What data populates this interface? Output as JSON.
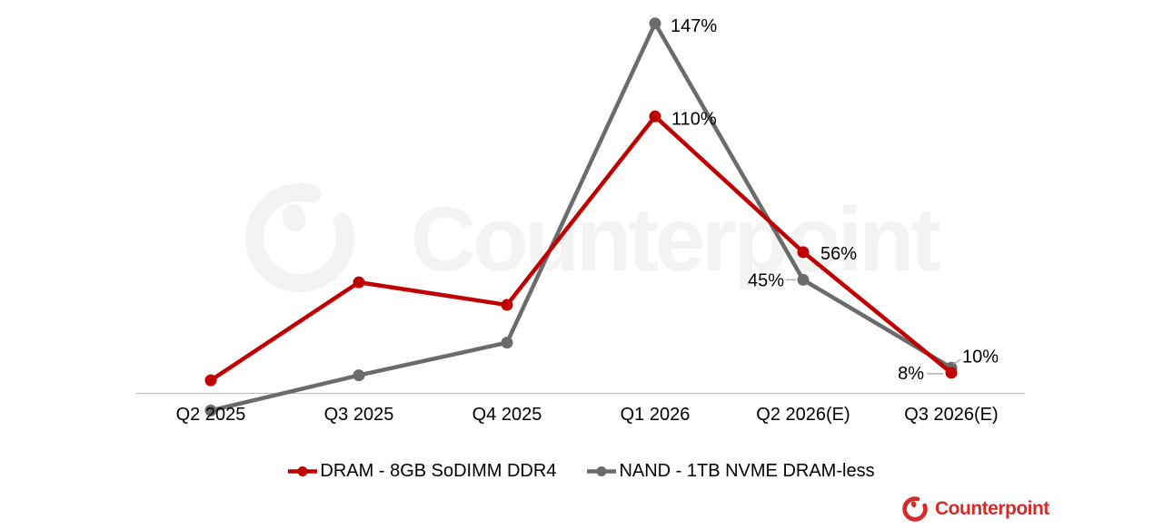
{
  "watermark": {
    "text": "Counterpoint"
  },
  "footer_logo": {
    "text": "Counterpoint",
    "color": "#D42B2B"
  },
  "chart_data": {
    "type": "line",
    "title": "",
    "xlabel": "",
    "ylabel": "",
    "unit": "%",
    "categories": [
      "Q2 2025",
      "Q3 2025",
      "Q4 2025",
      "Q1 2026",
      "Q2 2026(E)",
      "Q3 2026(E)"
    ],
    "ylim": [
      -10,
      160
    ],
    "grid": false,
    "baseline_at_zero": true,
    "legend_position": "bottom",
    "axis_color": "#BFBFBF",
    "label_color": "#000000",
    "leader_color": "#A6A6A6",
    "series": [
      {
        "name": "DRAM - 8GB SoDIMM DDR4",
        "color": "#C00000",
        "values": [
          5,
          44,
          35,
          110,
          56,
          8
        ],
        "point_labels": [
          {
            "index": 3,
            "text": "110%",
            "dx": 18,
            "dy": 9,
            "anchor": "start"
          },
          {
            "index": 4,
            "text": "56%",
            "dx": 19,
            "dy": 8,
            "anchor": "start"
          },
          {
            "index": 5,
            "text": "8%",
            "dx": -30,
            "dy": 7,
            "anchor": "end",
            "leader": [
              [
                -27,
                1
              ],
              [
                -9,
                1
              ]
            ]
          }
        ]
      },
      {
        "name": "NAND - 1TB NVME DRAM-less",
        "color": "#6B6B6B",
        "values": [
          -7,
          7,
          20,
          147,
          45,
          10
        ],
        "point_labels": [
          {
            "index": 3,
            "text": "147%",
            "dx": 17,
            "dy": 9,
            "anchor": "start"
          },
          {
            "index": 4,
            "text": "45%",
            "dx": -21,
            "dy": 7,
            "anchor": "end",
            "leader": [
              [
                -19,
                0
              ],
              [
                -8,
                0
              ]
            ]
          },
          {
            "index": 5,
            "text": "10%",
            "dx": 12,
            "dy": -6,
            "anchor": "start",
            "leader": [
              [
                2,
                -4
              ],
              [
                10,
                -9
              ]
            ]
          }
        ]
      }
    ]
  }
}
